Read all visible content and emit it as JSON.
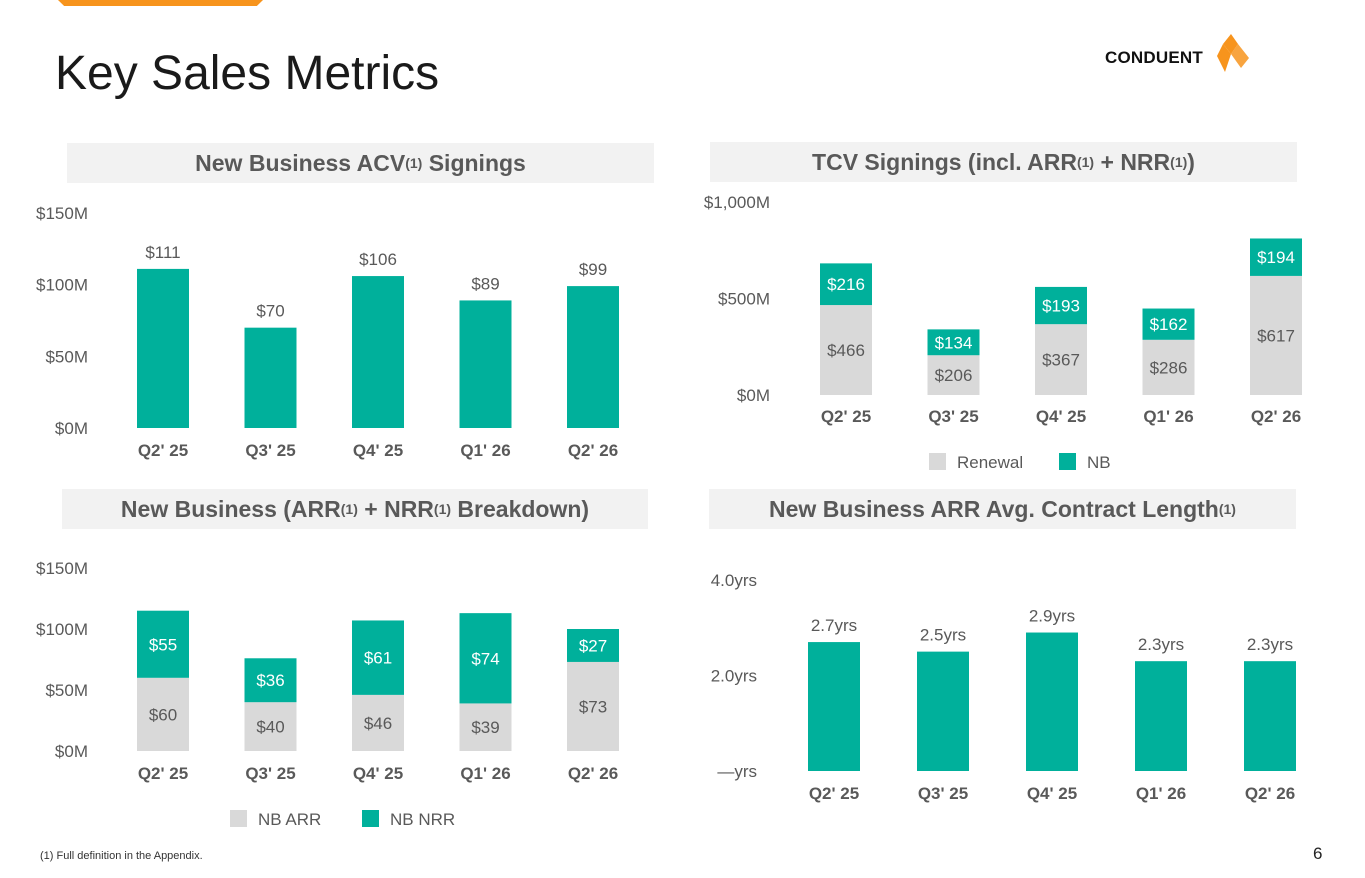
{
  "page": {
    "title": "Key Sales Metrics",
    "logo_text": "CONDUENT",
    "footnote": "(1) Full definition in the Appendix.",
    "page_number": "6"
  },
  "colors": {
    "teal": "#00b09b",
    "gray": "#d9d9d9",
    "accent": "#f7941d",
    "axis_text": "#595959"
  },
  "panels": {
    "acv": {
      "title_pre": "New Business ACV",
      "sup1": "(1)",
      "title_post": " Signings"
    },
    "tcv": {
      "title_pre": "TCV Signings (incl. ARR",
      "sup1": "(1)",
      "title_mid": " + NRR",
      "sup2": "(1)",
      "title_post": ")"
    },
    "nb": {
      "title_pre": "New Business (ARR",
      "sup1": "(1)",
      "title_mid": " + NRR",
      "sup2": "(1)",
      "title_post": " Breakdown)"
    },
    "length": {
      "title_pre": "New Business ARR Avg. Contract Length",
      "sup1": "(1)"
    }
  },
  "chart_data": [
    {
      "id": "acv",
      "type": "bar",
      "categories": [
        "Q2' 25",
        "Q3' 25",
        "Q4' 25",
        "Q1' 26",
        "Q2' 26"
      ],
      "values": [
        111,
        70,
        106,
        89,
        99
      ],
      "data_labels": [
        "$111",
        "$70",
        "$106",
        "$89",
        "$99"
      ],
      "ylim": [
        0,
        150
      ],
      "yticks": [
        0,
        50,
        100,
        150
      ],
      "ytick_labels": [
        "$0M",
        "$50M",
        "$100M",
        "$150M"
      ]
    },
    {
      "id": "tcv",
      "type": "bar",
      "stacked": true,
      "categories": [
        "Q2' 25",
        "Q3' 25",
        "Q4' 25",
        "Q1' 26",
        "Q2' 26"
      ],
      "series": [
        {
          "name": "Renewal",
          "values": [
            466,
            206,
            367,
            286,
            617
          ],
          "labels": [
            "$466",
            "$206",
            "$367",
            "$286",
            "$617"
          ]
        },
        {
          "name": "NB",
          "values": [
            216,
            134,
            193,
            162,
            194
          ],
          "labels": [
            "$216",
            "$134",
            "$193",
            "$162",
            "$194"
          ]
        }
      ],
      "ylim": [
        0,
        1000
      ],
      "yticks": [
        0,
        500,
        1000
      ],
      "ytick_labels": [
        "$0M",
        "$500M",
        "$1,000M"
      ],
      "legend": "bottom"
    },
    {
      "id": "nb",
      "type": "bar",
      "stacked": true,
      "categories": [
        "Q2' 25",
        "Q3' 25",
        "Q4' 25",
        "Q1' 26",
        "Q2' 26"
      ],
      "series": [
        {
          "name": "NB ARR",
          "values": [
            60,
            40,
            46,
            39,
            73
          ],
          "labels": [
            "$60",
            "$40",
            "$46",
            "$39",
            "$73"
          ]
        },
        {
          "name": "NB NRR",
          "values": [
            55,
            36,
            61,
            74,
            27
          ],
          "labels": [
            "$55",
            "$36",
            "$61",
            "$74",
            "$27"
          ]
        }
      ],
      "ylim": [
        0,
        150
      ],
      "yticks": [
        0,
        50,
        100,
        150
      ],
      "ytick_labels": [
        "$0M",
        "$50M",
        "$100M",
        "$150M"
      ],
      "legend": "bottom"
    },
    {
      "id": "length",
      "type": "bar",
      "categories": [
        "Q2' 25",
        "Q3' 25",
        "Q4' 25",
        "Q1' 26",
        "Q2' 26"
      ],
      "values": [
        2.7,
        2.5,
        2.9,
        2.3,
        2.3
      ],
      "data_labels": [
        "2.7yrs",
        "2.5yrs",
        "2.9yrs",
        "2.3yrs",
        "2.3yrs"
      ],
      "ylim": [
        0,
        4
      ],
      "yticks": [
        0,
        2,
        4
      ],
      "ytick_labels": [
        "—yrs",
        "2.0yrs",
        "4.0yrs"
      ]
    }
  ]
}
